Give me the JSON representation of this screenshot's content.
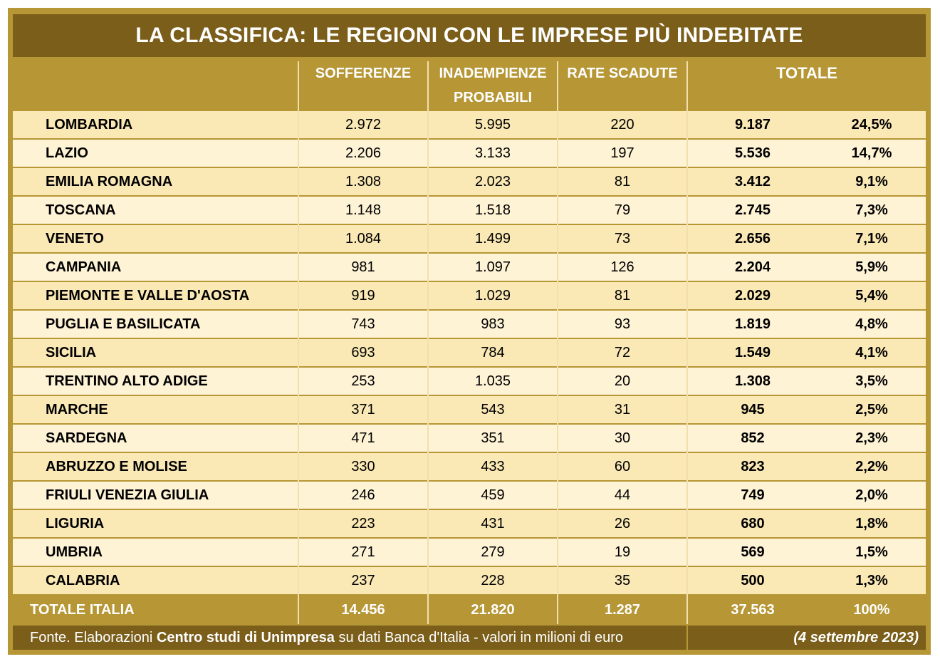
{
  "title": "LA CLASSIFICA: LE REGIONI CON LE IMPRESE PIÙ INDEBITATE",
  "headers": {
    "sofferenze": "SOFFERENZE",
    "inadempienze": "INADEMPIENZE PROBABILI",
    "rate_scadute": "RATE SCADUTE",
    "totale": "TOTALE"
  },
  "rows": [
    {
      "region": "LOMBARDIA",
      "sofferenze": "2.972",
      "inadempienze": "5.995",
      "rate": "220",
      "totale": "9.187",
      "perc": "24,5%"
    },
    {
      "region": "LAZIO",
      "sofferenze": "2.206",
      "inadempienze": "3.133",
      "rate": "197",
      "totale": "5.536",
      "perc": "14,7%"
    },
    {
      "region": "EMILIA ROMAGNA",
      "sofferenze": "1.308",
      "inadempienze": "2.023",
      "rate": "81",
      "totale": "3.412",
      "perc": "9,1%"
    },
    {
      "region": "TOSCANA",
      "sofferenze": "1.148",
      "inadempienze": "1.518",
      "rate": "79",
      "totale": "2.745",
      "perc": "7,3%"
    },
    {
      "region": "VENETO",
      "sofferenze": "1.084",
      "inadempienze": "1.499",
      "rate": "73",
      "totale": "2.656",
      "perc": "7,1%"
    },
    {
      "region": "CAMPANIA",
      "sofferenze": "981",
      "inadempienze": "1.097",
      "rate": "126",
      "totale": "2.204",
      "perc": "5,9%"
    },
    {
      "region": "PIEMONTE E VALLE D'AOSTA",
      "sofferenze": "919",
      "inadempienze": "1.029",
      "rate": "81",
      "totale": "2.029",
      "perc": "5,4%"
    },
    {
      "region": "PUGLIA E BASILICATA",
      "sofferenze": "743",
      "inadempienze": "983",
      "rate": "93",
      "totale": "1.819",
      "perc": "4,8%"
    },
    {
      "region": "SICILIA",
      "sofferenze": "693",
      "inadempienze": "784",
      "rate": "72",
      "totale": "1.549",
      "perc": "4,1%"
    },
    {
      "region": "TRENTINO ALTO ADIGE",
      "sofferenze": "253",
      "inadempienze": "1.035",
      "rate": "20",
      "totale": "1.308",
      "perc": "3,5%"
    },
    {
      "region": "MARCHE",
      "sofferenze": "371",
      "inadempienze": "543",
      "rate": "31",
      "totale": "945",
      "perc": "2,5%"
    },
    {
      "region": "SARDEGNA",
      "sofferenze": "471",
      "inadempienze": "351",
      "rate": "30",
      "totale": "852",
      "perc": "2,3%"
    },
    {
      "region": "ABRUZZO E MOLISE",
      "sofferenze": "330",
      "inadempienze": "433",
      "rate": "60",
      "totale": "823",
      "perc": "2,2%"
    },
    {
      "region": "FRIULI VENEZIA GIULIA",
      "sofferenze": "246",
      "inadempienze": "459",
      "rate": "44",
      "totale": "749",
      "perc": "2,0%"
    },
    {
      "region": "LIGURIA",
      "sofferenze": "223",
      "inadempienze": "431",
      "rate": "26",
      "totale": "680",
      "perc": "1,8%"
    },
    {
      "region": "UMBRIA",
      "sofferenze": "271",
      "inadempienze": "279",
      "rate": "19",
      "totale": "569",
      "perc": "1,5%"
    },
    {
      "region": "CALABRIA",
      "sofferenze": "237",
      "inadempienze": "228",
      "rate": "35",
      "totale": "500",
      "perc": "1,3%"
    }
  ],
  "total_row": {
    "label": "TOTALE ITALIA",
    "sofferenze": "14.456",
    "inadempienze": "21.820",
    "rate": "1.287",
    "totale": "37.563",
    "perc": "100%"
  },
  "footer": {
    "source_prefix": "Fonte. Elaborazioni ",
    "source_bold": "Centro studi di Unimpresa",
    "source_suffix": " su dati Banca d'Italia - valori in milioni di euro",
    "date": "(4 settembre 2023)"
  },
  "colors": {
    "frame": "#b69635",
    "title_bg": "#7a5e1a",
    "row_odd": "#fae8b5",
    "row_even": "#fff3d6"
  }
}
